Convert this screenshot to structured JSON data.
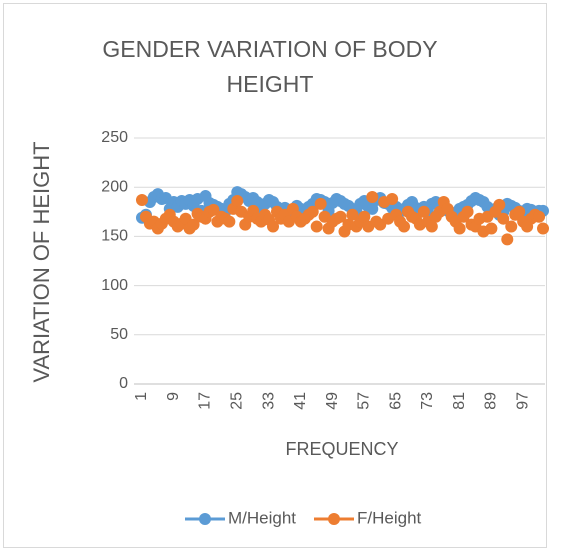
{
  "chart_data": {
    "type": "scatter-line",
    "title": "GENDER VARIATION OF BODY HEIGHT",
    "x_label": "FREQUENCY",
    "y_label": "VARIATION OF HEIGHT",
    "categories": [
      1,
      null,
      null,
      null,
      null,
      null,
      null,
      null,
      9,
      null,
      null,
      null,
      null,
      null,
      null,
      null,
      17,
      null,
      null,
      null,
      null,
      null,
      null,
      null,
      25,
      null,
      null,
      null,
      null,
      null,
      null,
      null,
      33,
      null,
      null,
      null,
      null,
      null,
      null,
      null,
      41,
      null,
      null,
      null,
      null,
      null,
      null,
      null,
      49,
      null,
      null,
      null,
      null,
      null,
      null,
      null,
      57,
      null,
      null,
      null,
      null,
      null,
      null,
      null,
      65,
      null,
      null,
      null,
      null,
      null,
      null,
      null,
      73,
      null,
      null,
      null,
      null,
      null,
      null,
      null,
      81,
      null,
      null,
      null,
      null,
      null,
      null,
      null,
      89,
      null,
      null,
      null,
      null,
      null,
      null,
      null,
      97,
      null,
      null,
      null,
      null,
      null
    ],
    "series": [
      {
        "name": "M/Height",
        "color": "#5b9bd5",
        "values": [
          169,
          172,
          185,
          190,
          193,
          188,
          189,
          178,
          185,
          180,
          186,
          183,
          187,
          181,
          188,
          176,
          191,
          184,
          182,
          180,
          178,
          175,
          183,
          187,
          195,
          193,
          190,
          186,
          189,
          185,
          178,
          183,
          187,
          185,
          180,
          176,
          179,
          172,
          177,
          181,
          178,
          175,
          180,
          183,
          188,
          187,
          185,
          176,
          184,
          188,
          186,
          183,
          181,
          178,
          176,
          183,
          186,
          180,
          178,
          187,
          189,
          184,
          183,
          179,
          180,
          175,
          178,
          182,
          185,
          179,
          177,
          180,
          176,
          183,
          185,
          181,
          178,
          176,
          174,
          172,
          178,
          180,
          182,
          186,
          189,
          187,
          185,
          180,
          176,
          178,
          172,
          175,
          183,
          181,
          179,
          176,
          174,
          178,
          177,
          175,
          176,
          176
        ]
      },
      {
        "name": "F/Height",
        "color": "#ed7d31",
        "values": [
          187,
          170,
          163,
          165,
          158,
          163,
          168,
          172,
          165,
          160,
          163,
          168,
          158,
          162,
          173,
          170,
          168,
          175,
          177,
          165,
          170,
          168,
          165,
          178,
          186,
          175,
          162,
          170,
          176,
          168,
          165,
          172,
          167,
          160,
          175,
          168,
          172,
          165,
          178,
          170,
          165,
          168,
          172,
          175,
          160,
          183,
          170,
          158,
          165,
          168,
          170,
          155,
          162,
          172,
          160,
          165,
          170,
          160,
          190,
          165,
          162,
          185,
          168,
          188,
          172,
          165,
          160,
          175,
          170,
          168,
          162,
          175,
          165,
          160,
          170,
          175,
          185,
          178,
          170,
          165,
          158,
          170,
          175,
          162,
          160,
          168,
          155,
          170,
          158,
          175,
          182,
          168,
          147,
          160,
          172,
          175,
          165,
          160,
          168,
          172,
          170,
          158
        ]
      }
    ],
    "ylim": [
      0,
      250
    ],
    "yticks": [
      0,
      50,
      100,
      150,
      200,
      250
    ],
    "grid": true,
    "legend": "bottom"
  }
}
